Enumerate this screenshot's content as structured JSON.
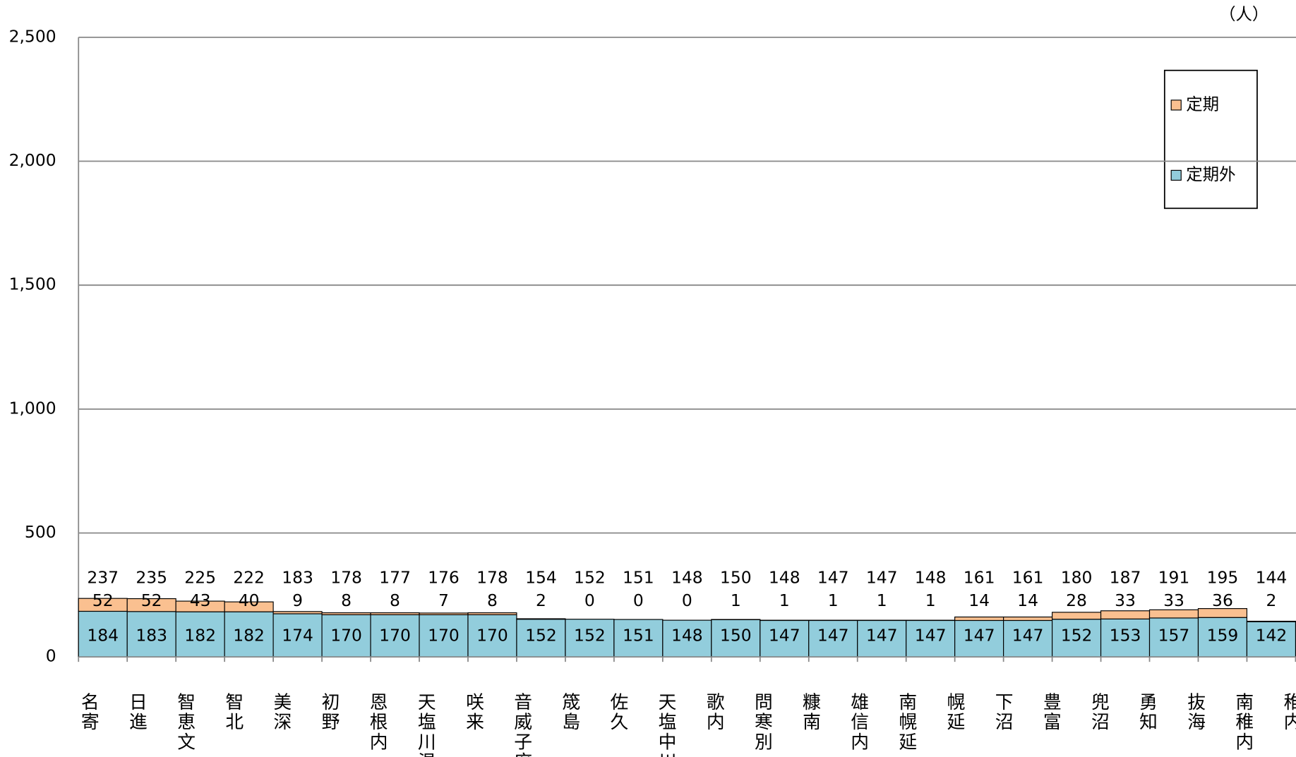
{
  "chart_data": {
    "type": "stacked-bar",
    "unit": "（人）",
    "categories": [
      "名寄",
      "日進",
      "智恵文",
      "智北",
      "美深",
      "初野",
      "恩根内",
      "天塩川温泉",
      "咲来",
      "音威子府",
      "筬島",
      "佐久",
      "天塩中川",
      "歌内",
      "問寒別",
      "糠南",
      "雄信内",
      "南幌延",
      "幌延",
      "下沼",
      "豊富",
      "兜沼",
      "勇知",
      "抜海",
      "南稚内",
      "稚内"
    ],
    "series": [
      {
        "name": "定期外",
        "color": "#92CDDC",
        "values": [
          184,
          183,
          182,
          182,
          174,
          170,
          170,
          170,
          170,
          152,
          152,
          151,
          148,
          150,
          147,
          147,
          147,
          147,
          147,
          147,
          152,
          153,
          157,
          159,
          142,
          null
        ]
      },
      {
        "name": "定期",
        "color": "#FAC090",
        "values": [
          52,
          52,
          43,
          40,
          9,
          8,
          8,
          7,
          8,
          2,
          0,
          0,
          0,
          1,
          1,
          1,
          1,
          1,
          14,
          14,
          28,
          33,
          33,
          36,
          2,
          null
        ]
      }
    ],
    "totals": [
      237,
      235,
      225,
      222,
      183,
      178,
      177,
      176,
      178,
      154,
      152,
      151,
      148,
      150,
      148,
      147,
      147,
      148,
      161,
      161,
      180,
      187,
      191,
      195,
      144,
      null
    ],
    "ylim": [
      0,
      2500
    ],
    "yticks": [
      0,
      500,
      {
        "value": 1000,
        "label": "1,000"
      },
      {
        "value": 1500,
        "label": "1,500"
      },
      {
        "value": 2000,
        "label": "2,000"
      },
      {
        "value": 2500,
        "label": "2,500"
      }
    ],
    "grid": true
  }
}
